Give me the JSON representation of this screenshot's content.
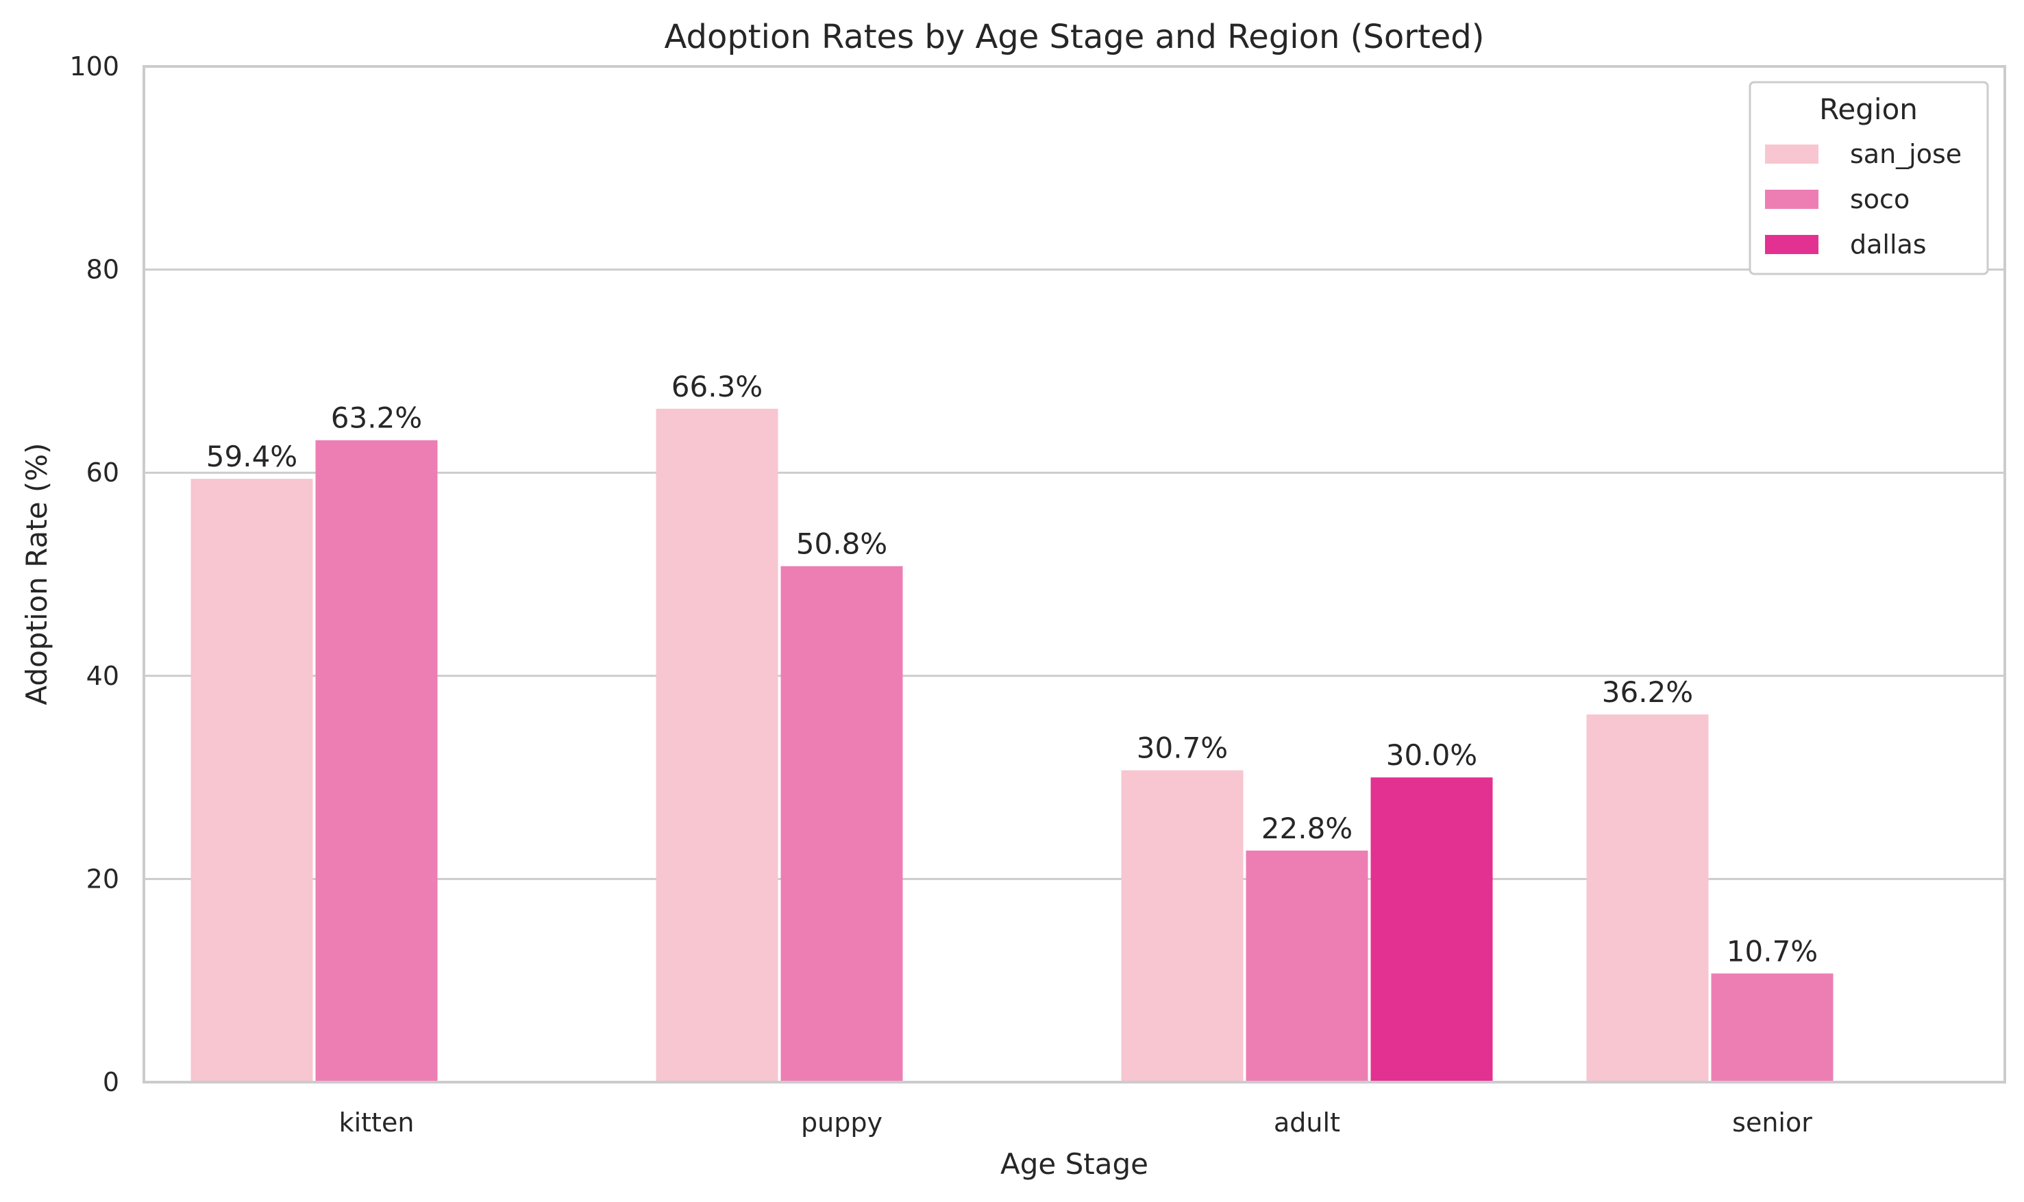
{
  "chart_data": {
    "type": "bar",
    "title": "Adoption Rates by Age Stage and Region (Sorted)",
    "xlabel": "Age Stage",
    "ylabel": "Adoption Rate (%)",
    "ylim": [
      0,
      100
    ],
    "yticks": [
      0,
      20,
      40,
      60,
      80,
      100
    ],
    "grid": true,
    "legend": {
      "title": "Region",
      "placement": "top-right"
    },
    "categories": [
      "kitten",
      "puppy",
      "adult",
      "senior"
    ],
    "series": [
      {
        "name": "san_jose",
        "color": "#f7c6d0",
        "values": [
          59.4,
          66.3,
          30.7,
          36.2
        ],
        "labels": [
          "59.4%",
          "66.3%",
          "30.7%",
          "36.2%"
        ]
      },
      {
        "name": "soco",
        "color": "#ed7eb4",
        "values": [
          63.2,
          50.8,
          22.8,
          10.7
        ],
        "labels": [
          "63.2%",
          "50.8%",
          "22.8%",
          "10.7%"
        ]
      },
      {
        "name": "dallas",
        "color": "#e33192",
        "values": [
          null,
          null,
          30.0,
          null
        ],
        "labels": [
          null,
          null,
          "30.0%",
          null
        ]
      }
    ]
  }
}
